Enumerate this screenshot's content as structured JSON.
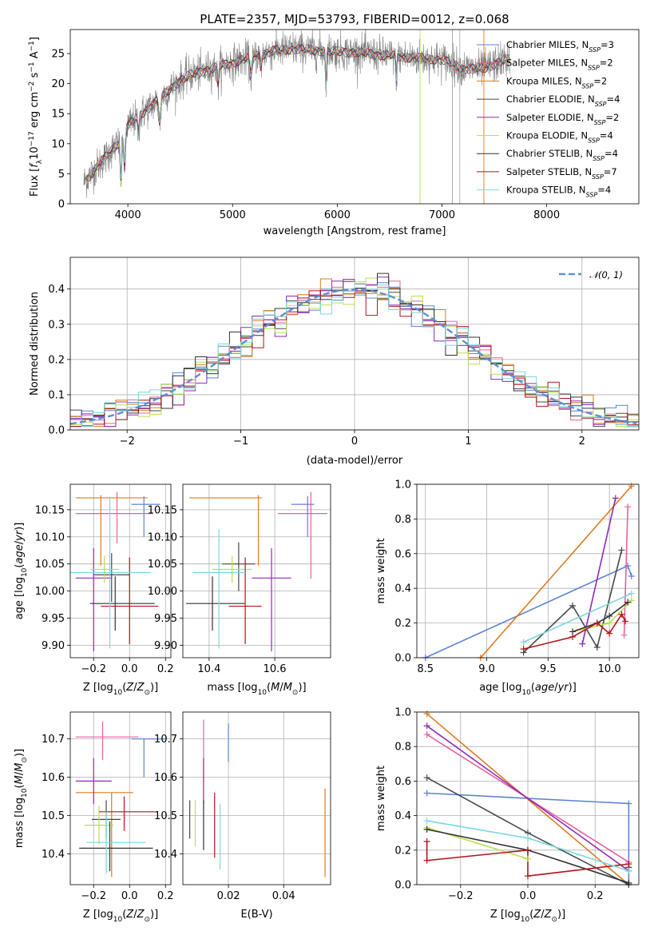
{
  "colors": {
    "Chabrier MILES": "#5b84d6",
    "Salpeter MILES": "#e4619f",
    "Kroupa MILES": "#e07a1f",
    "Chabrier ELODIE": "#4a4a4a",
    "Salpeter ELODIE": "#8e2bb4",
    "Kroupa ELODIE": "#b9e04f",
    "Chabrier STELIB": "#333333",
    "Salpeter STELIB": "#b3141a",
    "Kroupa STELIB": "#79d8dc",
    "normal": "#5b8fd6",
    "spectrum_data": "#808080"
  },
  "chart_data": [
    {
      "id": "spectrum",
      "type": "line",
      "title": "PLATE=2357, MJD=53793, FIBERID=0012, z=0.068",
      "xlabel": "wavelength [Angstrom, rest frame]",
      "ylabel": "Flux [f_λ 10^-17 erg cm^-2 s^-1 A^-1]",
      "xlim": [
        3450,
        8880
      ],
      "ylim": [
        0,
        29
      ],
      "xticks": [
        "4000",
        "5000",
        "6000",
        "7000",
        "8000"
      ],
      "yticks": [
        "0",
        "5",
        "10",
        "15",
        "20",
        "25"
      ],
      "grid": false,
      "legend_position": "top-right",
      "legend": [
        {
          "name": "Chabrier MILES, N_SSP=3",
          "label": "Chabrier MILES, N",
          "n": "3"
        },
        {
          "name": "Salpeter MILES, N_SSP=2",
          "label": "Salpeter MILES, N",
          "n": "2"
        },
        {
          "name": "Kroupa MILES, N_SSP=2",
          "label": "Kroupa MILES, N",
          "n": "2"
        },
        {
          "name": "Chabrier ELODIE, N_SSP=4",
          "label": "Chabrier ELODIE, N",
          "n": "4"
        },
        {
          "name": "Salpeter ELODIE, N_SSP=2",
          "label": "Salpeter ELODIE, N",
          "n": "2"
        },
        {
          "name": "Kroupa ELODIE, N_SSP=4",
          "label": "Kroupa ELODIE, N",
          "n": "4"
        },
        {
          "name": "Chabrier STELIB, N_SSP=4",
          "label": "Chabrier STELIB, N",
          "n": "4"
        },
        {
          "name": "Salpeter STELIB, N_SSP=7",
          "label": "Salpeter STELIB, N",
          "n": "7"
        },
        {
          "name": "Kroupa STELIB, N_SSP=4",
          "label": "Kroupa STELIB, N",
          "n": "4"
        }
      ],
      "continuum": {
        "x": [
          3550,
          3650,
          3750,
          3850,
          3950,
          4000,
          4100,
          4200,
          4300,
          4400,
          4500,
          4600,
          4700,
          4800,
          4900,
          5000,
          5200,
          5400,
          5600,
          5800,
          6000,
          6200,
          6400,
          6600,
          6800,
          7000,
          7200,
          7400,
          7600
        ],
        "y": [
          3,
          5,
          7,
          9,
          11,
          13,
          14.5,
          16,
          17.5,
          19,
          20.5,
          21.5,
          22,
          22.5,
          23,
          23.5,
          24.5,
          25.5,
          25.8,
          25.5,
          25.3,
          25.2,
          24.8,
          24.5,
          24.2,
          24,
          22.5,
          22.5,
          24
        ]
      }
    },
    {
      "id": "residuals",
      "type": "line",
      "xlabel": "(data-model)/error",
      "ylabel": "Normed distribution",
      "xlim": [
        -2.5,
        2.5
      ],
      "ylim": [
        0,
        0.49
      ],
      "xticks": [
        "−2",
        "−1",
        "0",
        "1",
        "2"
      ],
      "yticks": [
        "0.0",
        "0.1",
        "0.2",
        "0.3",
        "0.4"
      ],
      "grid": true,
      "legend_position": "top-right",
      "legend": [
        {
          "name": "N(0, 1)",
          "label": "𝒩(0, 1)"
        }
      ],
      "reference_curve": "standard normal pdf"
    },
    {
      "id": "age-vs-Z",
      "type": "scatter",
      "xlabel": "Z [log10(Z/Z⊙)]",
      "ylabel": "age [log10(age/yr)]",
      "xlim": [
        -0.33,
        0.23
      ],
      "ylim": [
        9.877,
        10.197
      ],
      "xticks": [
        "−0.2",
        "0.0",
        "0.2"
      ],
      "yticks": [
        "9.90",
        "9.95",
        "10.00",
        "10.05",
        "10.10",
        "10.15"
      ],
      "grid": true,
      "points": [
        {
          "model": "Chabrier MILES",
          "x": 0.08,
          "xerr": [
            0.07,
            0.09
          ],
          "y": 10.16,
          "yerr": [
            0.06,
            0.015
          ]
        },
        {
          "model": "Salpeter MILES",
          "x": -0.07,
          "xerr": [
            0.23,
            0.2
          ],
          "y": 10.143,
          "yerr": [
            0.055,
            0.04
          ]
        },
        {
          "model": "Kroupa MILES",
          "x": -0.16,
          "xerr": [
            0.14,
            0.26
          ],
          "y": 10.172,
          "yerr": [
            0.125,
            0.005
          ]
        },
        {
          "model": "Chabrier ELODIE",
          "x": -0.1,
          "xerr": [
            0.1,
            0.1
          ],
          "y": 10.03,
          "yerr": [
            0.05,
            0.04
          ]
        },
        {
          "model": "Salpeter ELODIE",
          "x": -0.2,
          "xerr": [
            0.1,
            0.1
          ],
          "y": 10.024,
          "yerr": [
            0.135,
            0.055
          ]
        },
        {
          "model": "Kroupa ELODIE",
          "x": -0.14,
          "xerr": [
            0.08,
            0.08
          ],
          "y": 10.04,
          "yerr": [
            0.025,
            0.025
          ]
        },
        {
          "model": "Chabrier STELIB",
          "x": -0.08,
          "xerr": [
            0.14,
            0.22
          ],
          "y": 9.977,
          "yerr": [
            0.05,
            0.05
          ]
        },
        {
          "model": "Salpeter STELIB",
          "x": 0.0,
          "xerr": [
            0.16,
            0.16
          ],
          "y": 9.972,
          "yerr": [
            0.07,
            0.09
          ]
        },
        {
          "model": "Kroupa STELIB",
          "x": -0.11,
          "xerr": [
            0.23,
            0.23
          ],
          "y": 10.034,
          "yerr": [
            0.14,
            0.14
          ]
        }
      ]
    },
    {
      "id": "age-vs-mass",
      "type": "scatter",
      "xlabel": "mass [log10(M/M⊙)]",
      "ylabel": "",
      "xlim": [
        10.32,
        10.77
      ],
      "ylim": [
        9.877,
        10.197
      ],
      "xticks": [
        "10.4",
        "10.6"
      ],
      "yticks": [
        "9.90",
        "9.95",
        "10.00",
        "10.05",
        "10.10",
        "10.15"
      ],
      "grid": true,
      "points": [
        {
          "model": "Chabrier MILES",
          "x": 10.7,
          "xerr": [
            0.05,
            0.02
          ],
          "y": 10.16,
          "yerr": [
            0.06,
            0.015
          ]
        },
        {
          "model": "Salpeter MILES",
          "x": 10.71,
          "xerr": [
            0.1,
            0.05
          ],
          "y": 10.143,
          "yerr": [
            0.12,
            0.04
          ]
        },
        {
          "model": "Kroupa MILES",
          "x": 10.55,
          "xerr": [
            0.21,
            0.01
          ],
          "y": 10.172,
          "yerr": [
            0.125,
            0.005
          ]
        },
        {
          "model": "Chabrier ELODIE",
          "x": 10.49,
          "xerr": [
            0.05,
            0.05
          ],
          "y": 10.05,
          "yerr": [
            0.05,
            0.04
          ]
        },
        {
          "model": "Salpeter ELODIE",
          "x": 10.59,
          "xerr": [
            0.06,
            0.06
          ],
          "y": 10.024,
          "yerr": [
            0.135,
            0.055
          ]
        },
        {
          "model": "Kroupa ELODIE",
          "x": 10.47,
          "xerr": [
            0.06,
            0.06
          ],
          "y": 10.04,
          "yerr": [
            0.025,
            0.025
          ]
        },
        {
          "model": "Chabrier STELIB",
          "x": 10.41,
          "xerr": [
            0.08,
            0.1
          ],
          "y": 9.977,
          "yerr": [
            0.05,
            0.05
          ]
        },
        {
          "model": "Salpeter STELIB",
          "x": 10.51,
          "xerr": [
            0.05,
            0.05
          ],
          "y": 9.972,
          "yerr": [
            0.07,
            0.09
          ]
        },
        {
          "model": "Kroupa STELIB",
          "x": 10.43,
          "xerr": [
            0.08,
            0.08
          ],
          "y": 10.034,
          "yerr": [
            0.14,
            0.08
          ]
        }
      ]
    },
    {
      "id": "weight-vs-age",
      "type": "line",
      "xlabel": "age [log10(age/yr)]",
      "ylabel": "mass weight",
      "xlim": [
        8.43,
        10.24
      ],
      "ylim": [
        0,
        1
      ],
      "xticks": [
        "8.5",
        "9.0",
        "9.5",
        "10.0"
      ],
      "yticks": [
        "0.0",
        "0.2",
        "0.4",
        "0.6",
        "0.8",
        "1.0"
      ],
      "grid": true,
      "series": [
        {
          "model": "Chabrier MILES",
          "x": [
            8.5,
            10.15,
            10.18
          ],
          "y": [
            0.0,
            0.53,
            0.47
          ]
        },
        {
          "model": "Salpeter MILES",
          "x": [
            10.12,
            10.15
          ],
          "y": [
            0.13,
            0.87
          ]
        },
        {
          "model": "Kroupa MILES",
          "x": [
            8.95,
            10.18
          ],
          "y": [
            0.0,
            0.99
          ]
        },
        {
          "model": "Chabrier ELODIE",
          "x": [
            9.3,
            9.7,
            9.9,
            10.1
          ],
          "y": [
            0.03,
            0.3,
            0.06,
            0.62
          ]
        },
        {
          "model": "Salpeter ELODIE",
          "x": [
            9.78,
            10.05
          ],
          "y": [
            0.08,
            0.92
          ]
        },
        {
          "model": "Kroupa ELODIE",
          "x": [
            9.7,
            10.0,
            10.18
          ],
          "y": [
            0.15,
            0.2,
            0.33
          ]
        },
        {
          "model": "Chabrier STELIB",
          "x": [
            9.7,
            9.9,
            10.0,
            10.15
          ],
          "y": [
            0.15,
            0.2,
            0.24,
            0.32
          ]
        },
        {
          "model": "Salpeter STELIB",
          "x": [
            9.3,
            9.7,
            9.9,
            10.0,
            10.1,
            10.13
          ],
          "y": [
            0.05,
            0.12,
            0.2,
            0.14,
            0.25,
            0.21
          ]
        },
        {
          "model": "Kroupa STELIB",
          "x": [
            9.3,
            10.18
          ],
          "y": [
            0.09,
            0.37
          ]
        }
      ]
    },
    {
      "id": "mass-vs-Z",
      "type": "scatter",
      "xlabel": "Z [log10(Z/Z⊙)]",
      "ylabel": "mass [log10(M/M⊙)]",
      "xlim": [
        -0.33,
        0.23
      ],
      "ylim": [
        10.32,
        10.77
      ],
      "xticks": [
        "−0.2",
        "0.0",
        "0.2"
      ],
      "yticks": [
        "10.4",
        "10.5",
        "10.6",
        "10.7"
      ],
      "grid": true,
      "points": [
        {
          "model": "Chabrier MILES",
          "x": 0.08,
          "xerr": [
            0.07,
            0.12
          ],
          "y": 10.7,
          "yerr": [
            0.1,
            0.0
          ]
        },
        {
          "model": "Salpeter MILES",
          "x": -0.15,
          "xerr": [
            0.15,
            0.2
          ],
          "y": 10.705,
          "yerr": [
            0.06,
            0.04
          ]
        },
        {
          "model": "Kroupa MILES",
          "x": -0.1,
          "xerr": [
            0.2,
            0.12
          ],
          "y": 10.56,
          "yerr": [
            0.22,
            0.0
          ]
        },
        {
          "model": "Chabrier ELODIE",
          "x": -0.13,
          "xerr": [
            0.08,
            0.08
          ],
          "y": 10.49,
          "yerr": [
            0.05,
            0.05
          ]
        },
        {
          "model": "Salpeter ELODIE",
          "x": -0.2,
          "xerr": [
            0.1,
            0.1
          ],
          "y": 10.59,
          "yerr": [
            0.06,
            0.06
          ]
        },
        {
          "model": "Kroupa ELODIE",
          "x": -0.17,
          "xerr": [
            0.08,
            0.08
          ],
          "y": 10.475,
          "yerr": [
            0.05,
            0.05
          ]
        },
        {
          "model": "Chabrier STELIB",
          "x": -0.11,
          "xerr": [
            0.17,
            0.24
          ],
          "y": 10.415,
          "yerr": [
            0.06,
            0.07
          ]
        },
        {
          "model": "Salpeter STELIB",
          "x": -0.03,
          "xerr": [
            0.14,
            0.17
          ],
          "y": 10.51,
          "yerr": [
            0.05,
            0.04
          ]
        },
        {
          "model": "Kroupa STELIB",
          "x": -0.13,
          "xerr": [
            0.11,
            0.22
          ],
          "y": 10.43,
          "yerr": [
            0.08,
            0.08
          ]
        }
      ]
    },
    {
      "id": "mass-vs-EBV",
      "type": "scatter",
      "xlabel": "E(B-V)",
      "ylabel": "",
      "xlim": [
        0.0035,
        0.057
      ],
      "ylim": [
        10.32,
        10.77
      ],
      "xticks": [
        "0.02",
        "0.04"
      ],
      "yticks": [
        "10.4",
        "10.5",
        "10.6",
        "10.7"
      ],
      "grid": true,
      "points": [
        {
          "model": "Chabrier MILES",
          "x": 0.02,
          "y": 10.7,
          "yerr": [
            0.06,
            0.04
          ]
        },
        {
          "model": "Salpeter MILES",
          "x": 0.011,
          "y": 10.65,
          "yerr": [
            0.06,
            0.1
          ]
        },
        {
          "model": "Kroupa MILES",
          "x": 0.055,
          "y": 10.45,
          "yerr": [
            0.11,
            0.12
          ]
        },
        {
          "model": "Chabrier ELODIE",
          "x": 0.006,
          "y": 10.49,
          "yerr": [
            0.05,
            0.05
          ]
        },
        {
          "model": "Salpeter ELODIE",
          "x": 0.011,
          "y": 10.59,
          "yerr": [
            0.06,
            0.06
          ]
        },
        {
          "model": "Kroupa ELODIE",
          "x": 0.008,
          "y": 10.48,
          "yerr": [
            0.06,
            0.06
          ]
        },
        {
          "model": "Chabrier STELIB",
          "x": 0.011,
          "y": 10.47,
          "yerr": [
            0.06,
            0.07
          ]
        },
        {
          "model": "Salpeter STELIB",
          "x": 0.015,
          "y": 10.49,
          "yerr": [
            0.1,
            0.07
          ]
        },
        {
          "model": "Kroupa STELIB",
          "x": 0.017,
          "y": 10.45,
          "yerr": [
            0.09,
            0.08
          ]
        }
      ]
    },
    {
      "id": "weight-vs-Z",
      "type": "line",
      "xlabel": "Z [log10(Z/Z⊙)]",
      "ylabel": "mass weight",
      "xlim": [
        -0.33,
        0.33
      ],
      "ylim": [
        0,
        1
      ],
      "xticks": [
        "−0.2",
        "0.0",
        "0.2"
      ],
      "yticks": [
        "0.0",
        "0.2",
        "0.4",
        "0.6",
        "0.8",
        "1.0"
      ],
      "grid": true,
      "series": [
        {
          "model": "Chabrier MILES",
          "x": [
            -0.3,
            0.3,
            0.3
          ],
          "y": [
            0.53,
            0.47,
            0.0
          ]
        },
        {
          "model": "Salpeter MILES",
          "x": [
            -0.3,
            0.3
          ],
          "y": [
            0.87,
            0.13
          ]
        },
        {
          "model": "Kroupa MILES",
          "x": [
            -0.3,
            0.3
          ],
          "y": [
            0.99,
            0.0
          ]
        },
        {
          "model": "Chabrier ELODIE",
          "x": [
            -0.3,
            0.0,
            0.3
          ],
          "y": [
            0.62,
            0.3,
            0.0
          ]
        },
        {
          "model": "Salpeter ELODIE",
          "x": [
            -0.3,
            0.3
          ],
          "y": [
            0.92,
            0.08
          ]
        },
        {
          "model": "Kroupa ELODIE",
          "x": [
            -0.3,
            0.0
          ],
          "y": [
            0.33,
            0.15
          ]
        },
        {
          "model": "Chabrier STELIB",
          "x": [
            -0.3,
            0.0,
            0.3
          ],
          "y": [
            0.32,
            0.2,
            0.01
          ]
        },
        {
          "model": "Salpeter STELIB",
          "x": [
            -0.3,
            -0.3,
            0.0,
            0.0,
            0.3,
            0.3
          ],
          "y": [
            0.25,
            0.14,
            0.2,
            0.05,
            0.12,
            0.1
          ]
        },
        {
          "model": "Kroupa STELIB",
          "x": [
            -0.3,
            0.0,
            0.3
          ],
          "y": [
            0.37,
            0.27,
            0.08
          ]
        }
      ]
    }
  ]
}
